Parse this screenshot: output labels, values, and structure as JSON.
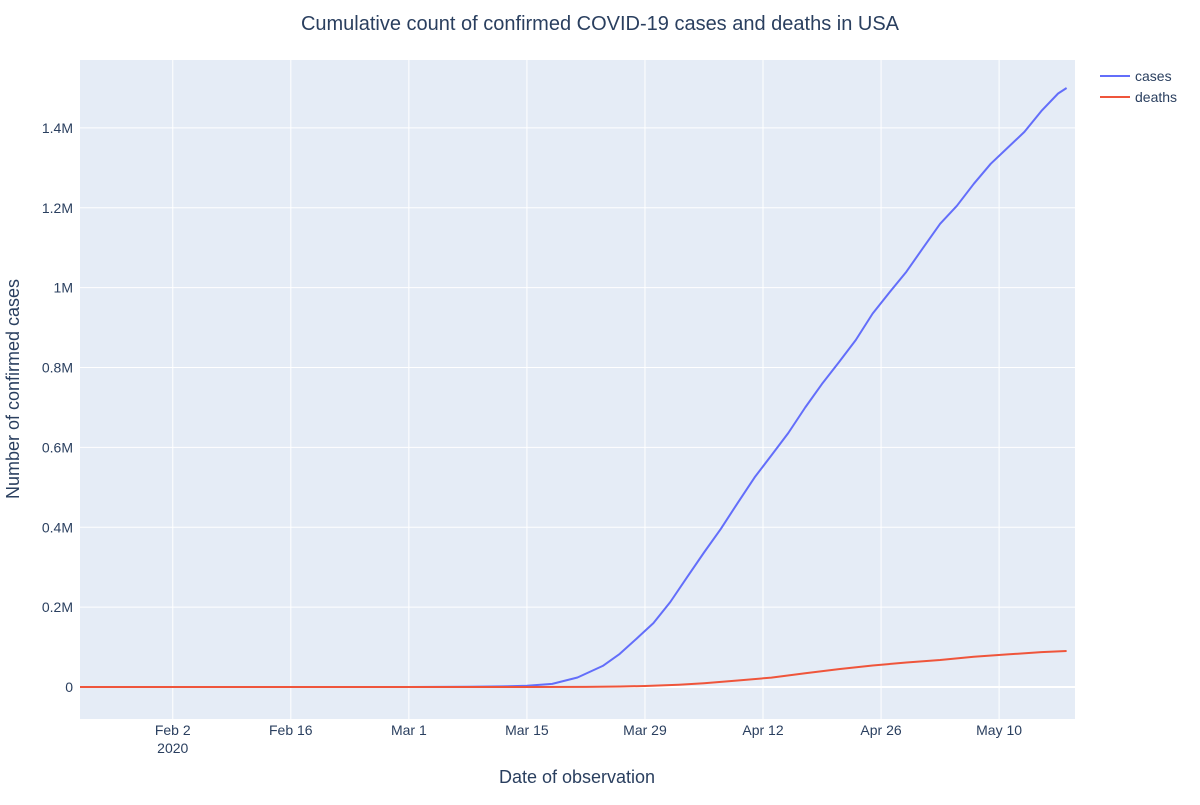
{
  "chart_data": {
    "type": "line",
    "title": "Cumulative count of confirmed COVID-19 cases and deaths in USA",
    "xlabel": "Date of observation",
    "ylabel": "Number of confirmed cases",
    "xlim": [
      "2020-01-22",
      "2020-05-19"
    ],
    "ylim": [
      -80000,
      1570000
    ],
    "grid": true,
    "legend_position": "top-right, outside plot",
    "x_ticks": [
      {
        "date": "2020-02-02",
        "label": "Feb 2",
        "sublabel": "2020"
      },
      {
        "date": "2020-02-16",
        "label": "Feb 16"
      },
      {
        "date": "2020-03-01",
        "label": "Mar 1"
      },
      {
        "date": "2020-03-15",
        "label": "Mar 15"
      },
      {
        "date": "2020-03-29",
        "label": "Mar 29"
      },
      {
        "date": "2020-04-12",
        "label": "Apr 12"
      },
      {
        "date": "2020-04-26",
        "label": "Apr 26"
      },
      {
        "date": "2020-05-10",
        "label": "May 10"
      }
    ],
    "y_ticks": [
      {
        "value": 0,
        "label": "0"
      },
      {
        "value": 200000,
        "label": "0.2M"
      },
      {
        "value": 400000,
        "label": "0.4M"
      },
      {
        "value": 600000,
        "label": "0.6M"
      },
      {
        "value": 800000,
        "label": "0.8M"
      },
      {
        "value": 1000000,
        "label": "1M"
      },
      {
        "value": 1200000,
        "label": "1.2M"
      },
      {
        "value": 1400000,
        "label": "1.4M"
      }
    ],
    "series": [
      {
        "name": "cases",
        "color": "#636efa",
        "points": [
          [
            "2020-01-22",
            1
          ],
          [
            "2020-02-15",
            15
          ],
          [
            "2020-03-01",
            75
          ],
          [
            "2020-03-08",
            540
          ],
          [
            "2020-03-12",
            1660
          ],
          [
            "2020-03-15",
            3500
          ],
          [
            "2020-03-18",
            7800
          ],
          [
            "2020-03-21",
            24000
          ],
          [
            "2020-03-24",
            53000
          ],
          [
            "2020-03-26",
            83000
          ],
          [
            "2020-03-28",
            121000
          ],
          [
            "2020-03-30",
            160000
          ],
          [
            "2020-04-01",
            213000
          ],
          [
            "2020-04-03",
            275000
          ],
          [
            "2020-04-05",
            337000
          ],
          [
            "2020-04-07",
            396000
          ],
          [
            "2020-04-09",
            461000
          ],
          [
            "2020-04-11",
            525000
          ],
          [
            "2020-04-13",
            580000
          ],
          [
            "2020-04-15",
            636000
          ],
          [
            "2020-04-17",
            700000
          ],
          [
            "2020-04-19",
            759000
          ],
          [
            "2020-04-21",
            813000
          ],
          [
            "2020-04-23",
            869000
          ],
          [
            "2020-04-25",
            935000
          ],
          [
            "2020-04-27",
            988000
          ],
          [
            "2020-04-29",
            1040000
          ],
          [
            "2020-05-01",
            1100000
          ],
          [
            "2020-05-03",
            1160000
          ],
          [
            "2020-05-05",
            1205000
          ],
          [
            "2020-05-07",
            1260000
          ],
          [
            "2020-05-09",
            1310000
          ],
          [
            "2020-05-11",
            1350000
          ],
          [
            "2020-05-13",
            1390000
          ],
          [
            "2020-05-15",
            1442000
          ],
          [
            "2020-05-17",
            1486000
          ],
          [
            "2020-05-18",
            1500000
          ]
        ]
      },
      {
        "name": "deaths",
        "color": "#ef553b",
        "points": [
          [
            "2020-01-22",
            0
          ],
          [
            "2020-03-01",
            1
          ],
          [
            "2020-03-15",
            68
          ],
          [
            "2020-03-22",
            420
          ],
          [
            "2020-03-26",
            1300
          ],
          [
            "2020-03-29",
            2500
          ],
          [
            "2020-04-02",
            6000
          ],
          [
            "2020-04-05",
            9600
          ],
          [
            "2020-04-09",
            16500
          ],
          [
            "2020-04-13",
            23600
          ],
          [
            "2020-04-17",
            34600
          ],
          [
            "2020-04-21",
            44900
          ],
          [
            "2020-04-25",
            53900
          ],
          [
            "2020-04-29",
            61500
          ],
          [
            "2020-05-03",
            67700
          ],
          [
            "2020-05-07",
            76000
          ],
          [
            "2020-05-11",
            81700
          ],
          [
            "2020-05-15",
            87500
          ],
          [
            "2020-05-18",
            90300
          ]
        ]
      }
    ]
  }
}
